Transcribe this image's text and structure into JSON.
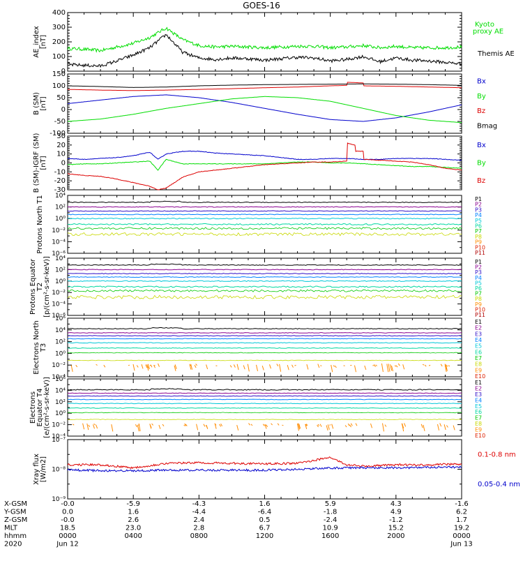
{
  "title": "GOES-16",
  "colors": {
    "black": "#000000",
    "blue": "#0000cc",
    "green": "#00dd00",
    "red": "#dd0000",
    "channel_palette": [
      "#000000",
      "#8b0090",
      "#3010c8",
      "#0080ff",
      "#00c8d8",
      "#00d8a0",
      "#00c800",
      "#c8d800",
      "#ff8c00",
      "#dd2000",
      "#b00000"
    ]
  },
  "time_axis": {
    "start": 0,
    "end": 24,
    "unit": "hours since 2020 Jun 12 0000",
    "tick_hours": [
      0,
      4,
      8,
      12,
      16,
      20,
      24
    ]
  },
  "ephemeris": {
    "labels": [
      "X-GSM",
      "Y-GSM",
      "Z-GSM",
      "MLT",
      "hhmm",
      "2020"
    ],
    "rows": [
      [
        "-0.0",
        "-5.9",
        "-4.3",
        "1.6",
        "5.9",
        "4.3",
        "-1.6"
      ],
      [
        "0.0",
        "1.6",
        "-4.4",
        "-6.4",
        "-1.8",
        "4.9",
        "6.2"
      ],
      [
        "-0.0",
        "2.6",
        "2.4",
        "0.5",
        "-2.4",
        "-1.2",
        "1.7"
      ],
      [
        "18.5",
        "23.0",
        "2.8",
        "6.7",
        "10.9",
        "15.2",
        "19.2"
      ],
      [
        "0000",
        "0400",
        "0800",
        "1200",
        "1600",
        "2000",
        "0000"
      ],
      [
        "Jun 12",
        "",
        "",
        "",
        "",
        "",
        "Jun 13"
      ]
    ]
  },
  "chart_data": [
    {
      "type": "line",
      "id": "ae",
      "ylabel": "AE_index [nT]",
      "ylim": [
        0,
        400
      ],
      "yscale": "linear",
      "ytick_labels": [
        "0",
        "100",
        "200",
        "300",
        "400"
      ],
      "series": [
        {
          "name": "Kyoto proxy AE",
          "color": "#00dd00",
          "x": [
            0,
            1,
            2,
            3,
            4,
            5,
            6,
            7,
            8,
            9,
            10,
            11,
            12,
            13,
            14,
            15,
            16,
            17,
            18,
            19,
            20,
            21,
            22,
            23,
            24
          ],
          "y": [
            155,
            150,
            140,
            165,
            190,
            230,
            295,
            215,
            175,
            165,
            170,
            165,
            160,
            165,
            170,
            170,
            160,
            165,
            175,
            160,
            170,
            160,
            160,
            160,
            165
          ]
        },
        {
          "name": "Themis AE",
          "color": "#000000",
          "x": [
            0,
            1,
            2,
            3,
            4,
            5,
            6,
            7,
            8,
            9,
            10,
            11,
            12,
            13,
            14,
            15,
            16,
            17,
            18,
            19,
            20,
            21,
            22,
            23,
            24
          ],
          "y": [
            45,
            40,
            35,
            70,
            110,
            160,
            250,
            130,
            90,
            80,
            90,
            85,
            75,
            85,
            95,
            90,
            70,
            80,
            100,
            65,
            90,
            75,
            70,
            60,
            50
          ]
        }
      ]
    },
    {
      "type": "line",
      "id": "bsm",
      "ylabel": "B (SM) [nT]",
      "ylim": [
        -100,
        150
      ],
      "yscale": "linear",
      "ytick_labels": [
        "-100",
        "-50",
        "0",
        "50",
        "100",
        "150"
      ],
      "series": [
        {
          "name": "Bx",
          "color": "#0000cc",
          "x": [
            0,
            2,
            4,
            6,
            8,
            10,
            12,
            14,
            16,
            18,
            20,
            22,
            24
          ],
          "y": [
            25,
            40,
            55,
            62,
            50,
            30,
            5,
            -20,
            -42,
            -50,
            -35,
            -10,
            20
          ]
        },
        {
          "name": "By",
          "color": "#00dd00",
          "x": [
            0,
            2,
            4,
            6,
            8,
            10,
            12,
            14,
            16,
            18,
            20,
            22,
            24
          ],
          "y": [
            -50,
            -40,
            -20,
            5,
            25,
            45,
            55,
            50,
            35,
            5,
            -25,
            -45,
            -55
          ]
        },
        {
          "name": "Bz",
          "color": "#dd0000",
          "x": [
            0,
            2,
            4,
            6,
            8,
            10,
            12,
            14,
            16,
            17,
            17.05,
            18,
            18.05,
            20,
            22,
            24
          ],
          "y": [
            85,
            82,
            80,
            82,
            85,
            88,
            92,
            95,
            100,
            102,
            115,
            112,
            100,
            98,
            95,
            92
          ]
        },
        {
          "name": "Bmag",
          "color": "#000000",
          "x": [
            0,
            2,
            4,
            6,
            8,
            10,
            12,
            14,
            16,
            18,
            20,
            22,
            24
          ],
          "y": [
            100,
            97,
            93,
            95,
            100,
            103,
            105,
            106,
            107,
            108,
            107,
            105,
            102
          ]
        }
      ]
    },
    {
      "type": "line",
      "id": "bresid",
      "ylabel": "B (SM)-IGRF (SM) [nT]",
      "ylim": [
        -30,
        30
      ],
      "yscale": "linear",
      "ytick_labels": [
        "-30",
        "-20",
        "-10",
        "0",
        "10",
        "20",
        "30"
      ],
      "series": [
        {
          "name": "Bx",
          "color": "#0000cc",
          "x": [
            0,
            1,
            2,
            3,
            4,
            5,
            5.5,
            6,
            7,
            8,
            9,
            10,
            11,
            12,
            13,
            14,
            15,
            16,
            17,
            18,
            19,
            20,
            21,
            22,
            23,
            24
          ],
          "y": [
            5,
            4,
            5,
            6,
            8,
            12,
            4,
            10,
            13,
            13,
            11,
            10,
            9,
            8,
            6,
            4,
            4,
            5,
            5,
            4,
            4,
            5,
            5,
            5,
            4,
            3
          ]
        },
        {
          "name": "By",
          "color": "#00dd00",
          "x": [
            0,
            1,
            2,
            3,
            4,
            5,
            5.5,
            6,
            7,
            8,
            9,
            10,
            11,
            12,
            13,
            14,
            15,
            16,
            17,
            18,
            19,
            20,
            21,
            22,
            23,
            24
          ],
          "y": [
            -2,
            -1,
            -1,
            0,
            1,
            2,
            -8,
            4,
            -1,
            -1,
            -1,
            -1,
            -1,
            -1,
            0,
            1,
            1,
            0,
            0,
            -1,
            -2,
            -3,
            -4,
            -4,
            -5,
            -6
          ]
        },
        {
          "name": "Bz",
          "color": "#dd0000",
          "x": [
            0,
            1,
            2,
            3,
            4,
            5,
            5.5,
            6,
            6.5,
            7,
            8,
            9,
            10,
            11,
            12,
            13,
            14,
            15,
            16,
            17,
            17.05,
            17.5,
            17.55,
            18,
            18.05,
            19,
            20,
            21,
            22,
            23,
            24
          ],
          "y": [
            -12,
            -14,
            -15,
            -18,
            -22,
            -26,
            -30,
            -28,
            -22,
            -16,
            -10,
            -8,
            -6,
            -4,
            -2,
            -1,
            0,
            1,
            1,
            2,
            22,
            20,
            13,
            13,
            4,
            3,
            2,
            1,
            -2,
            -6,
            -8
          ]
        }
      ]
    },
    {
      "type": "line",
      "id": "p_t1",
      "ylabel": "Protons North T1",
      "ylim_log10": [
        -6,
        4
      ],
      "yscale": "log",
      "ytick_labels": [
        "10⁻⁶",
        "10⁻⁴",
        "10⁻²",
        "10⁰",
        "10²",
        "10⁴"
      ],
      "channels": [
        "P1",
        "P2",
        "P3",
        "P4",
        "P5",
        "P6",
        "P7",
        "P8",
        "P9",
        "P10",
        "P11"
      ],
      "levels_log10": [
        2.8,
        2.0,
        1.3,
        0.7,
        0.0,
        -1.0,
        -1.7,
        -2.7,
        -4.4,
        -5.1,
        -5.5
      ],
      "noise": [
        0.06,
        0.06,
        0.06,
        0.06,
        0.08,
        0.12,
        0.18,
        0.25,
        0,
        0,
        0
      ]
    },
    {
      "type": "line",
      "id": "p_t2",
      "ylabel": "Protons Equator T2 [p/(cm²-s-sr-keV)]",
      "ylim_log10": [
        -6,
        4
      ],
      "yscale": "log",
      "ytick_labels": [
        "10⁻⁶",
        "10⁻⁴",
        "10⁻²",
        "10⁰",
        "10²",
        "10⁴"
      ],
      "channels": [
        "P1",
        "P2",
        "P3",
        "P4",
        "P5",
        "P6",
        "P7",
        "P8",
        "P9",
        "P10",
        "P11"
      ],
      "levels_log10": [
        2.8,
        2.0,
        1.3,
        0.7,
        0.0,
        -1.0,
        -1.7,
        -2.8,
        -4.4,
        -5.1,
        -5.5
      ],
      "noise": [
        0.06,
        0.06,
        0.06,
        0.06,
        0.08,
        0.12,
        0.18,
        0.3,
        0,
        0,
        0
      ]
    },
    {
      "type": "line",
      "id": "e_t3",
      "ylabel": "Electrons North T3",
      "ylim_log10": [
        -4,
        6
      ],
      "yscale": "log",
      "ytick_labels": [
        "10⁻⁴",
        "10⁻²",
        "10⁰",
        "10²",
        "10⁴",
        "10⁶"
      ],
      "channels": [
        "E1",
        "E2",
        "E3",
        "E4",
        "E5",
        "E6",
        "E7",
        "E8",
        "E9",
        "E10"
      ],
      "levels_log10": [
        4.2,
        3.5,
        3.0,
        2.5,
        1.8,
        0.9,
        0.1,
        -1.2,
        -2.0,
        -3.0
      ],
      "noise": [
        0.06,
        0.05,
        0.05,
        0.05,
        0.05,
        0.05,
        0.05,
        0.05,
        0.5,
        0
      ]
    },
    {
      "type": "line",
      "id": "e_t4",
      "ylabel": "Electrons Equator T4 [e/(cm²-s-sr-keV)]",
      "ylim_log10": [
        -4,
        6
      ],
      "yscale": "log",
      "ytick_labels": [
        "10⁻⁴",
        "10⁻²",
        "10⁰",
        "10²",
        "10⁴",
        "10⁶"
      ],
      "channels": [
        "E1",
        "E2",
        "E3",
        "E4",
        "E5",
        "E6",
        "E7",
        "E8",
        "E9",
        "E10"
      ],
      "levels_log10": [
        4.1,
        3.5,
        3.0,
        2.4,
        1.7,
        0.9,
        0.1,
        -1.1,
        -2.0,
        -3.0
      ],
      "noise": [
        0.08,
        0.05,
        0.05,
        0.05,
        0.05,
        0.05,
        0.05,
        0.05,
        0.5,
        0
      ]
    },
    {
      "type": "line",
      "id": "xray",
      "ylabel": "Xray flux [W/m2]",
      "ylim_log10": [
        -9,
        -7
      ],
      "yscale": "log",
      "ytick_labels": [
        "10⁻⁹",
        "10⁻⁸",
        "10⁻⁷"
      ],
      "series": [
        {
          "name": "0.1-0.8 nm",
          "color": "#dd0000",
          "x": [
            0,
            2,
            4,
            6,
            8,
            10,
            12,
            14,
            15,
            16,
            17,
            18,
            20,
            22,
            24
          ],
          "y_log10": [
            -7.85,
            -7.85,
            -7.95,
            -7.8,
            -7.78,
            -7.8,
            -7.82,
            -7.8,
            -7.7,
            -7.6,
            -7.85,
            -7.9,
            -7.85,
            -7.85,
            -7.82
          ]
        },
        {
          "name": "0.05-0.4 nm",
          "color": "#0000cc",
          "x": [
            0,
            2,
            4,
            6,
            8,
            10,
            12,
            14,
            16,
            18,
            20,
            22,
            24
          ],
          "y_log10": [
            -8.02,
            -8.05,
            -8.05,
            -8.03,
            -8.03,
            -8.03,
            -8.03,
            -8.0,
            -7.96,
            -7.95,
            -7.95,
            -7.94,
            -7.93
          ]
        }
      ]
    }
  ]
}
